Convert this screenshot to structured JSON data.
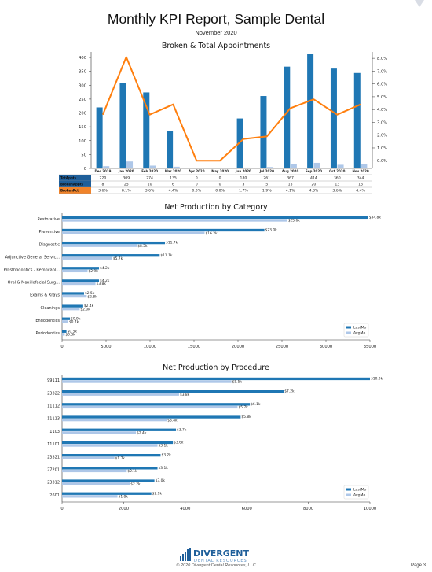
{
  "report": {
    "title": "Monthly KPI Report, Sample Dental",
    "subtitle": "November 2020"
  },
  "footer": {
    "logo_main": "DIVERGENT",
    "logo_sub": "DENTAL RESOURCES",
    "copyright": "© 2020 Divergent Dental Resources, LLC",
    "page": "Page 3"
  },
  "colors": {
    "dark_blue": "#1f77b4",
    "light_blue": "#aec7e8",
    "orange": "#ff7f0e",
    "table_header": "#1f5f9a",
    "table_orange": "#f0832a"
  },
  "chart_data": [
    {
      "type": "bar",
      "title": "Broken & Total Appointments",
      "categories": [
        "Dec 2019",
        "Jan 2020",
        "Feb 2020",
        "Mar 2020",
        "Apr 2020",
        "May 2020",
        "Jun 2020",
        "Jul 2020",
        "Aug 2020",
        "Sep 2020",
        "Oct 2020",
        "Nov 2020"
      ],
      "series": [
        {
          "name": "TotAppts",
          "kind": "bar",
          "axis": "left",
          "color": "#1f77b4",
          "values": [
            220,
            309,
            274,
            135,
            0,
            0,
            180,
            261,
            367,
            414,
            360,
            344
          ]
        },
        {
          "name": "BrokenAppts",
          "kind": "bar",
          "axis": "left",
          "color": "#aec7e8",
          "values": [
            8,
            25,
            10,
            6,
            0,
            0,
            3,
            5,
            15,
            20,
            13,
            15
          ]
        },
        {
          "name": "BrokenPct",
          "kind": "line",
          "axis": "right",
          "color": "#ff7f0e",
          "values": [
            3.6,
            8.1,
            3.6,
            4.4,
            0.0,
            0.0,
            1.7,
            1.9,
            4.1,
            4.8,
            3.6,
            4.4
          ]
        }
      ],
      "table_rows": [
        {
          "label": "TotAppts",
          "cells": [
            "220",
            "309",
            "274",
            "135",
            "0",
            "0",
            "180",
            "261",
            "367",
            "414",
            "360",
            "344"
          ]
        },
        {
          "label": "BrokenAppts",
          "cells": [
            "8",
            "25",
            "10",
            "6",
            "0",
            "0",
            "3",
            "5",
            "15",
            "20",
            "13",
            "15"
          ]
        },
        {
          "label": "BrokenPct",
          "cells": [
            "3.6%",
            "8.1%",
            "3.6%",
            "4.4%",
            "0.0%",
            "0.0%",
            "1.7%",
            "1.9%",
            "4.1%",
            "4.8%",
            "3.6%",
            "4.4%"
          ]
        }
      ],
      "ylim": [
        0,
        420
      ],
      "yticks": [
        0,
        50,
        100,
        150,
        200,
        250,
        300,
        350,
        400
      ],
      "y2lim": [
        -0.6,
        8.5
      ],
      "y2ticks": [
        "0.0%",
        "1.0%",
        "2.0%",
        "3.0%",
        "4.0%",
        "5.0%",
        "6.0%",
        "7.0%",
        "8.0%"
      ],
      "grid": false
    },
    {
      "type": "bar",
      "orientation": "horizontal",
      "title": "Net Production by Category",
      "categories": [
        "Restorative",
        "Preventive",
        "Diagnostic",
        "Adjunctive General Servic...",
        "Prosthodontics - Removabl...",
        "Oral & Maxillofacial Surg...",
        "Exams & Xrays",
        "Cleanings",
        "Endodontics",
        "Periodontics"
      ],
      "series": [
        {
          "name": "LastMo",
          "color": "#1f77b4",
          "values": [
            34800,
            23000,
            11700,
            11100,
            4200,
            4200,
            2500,
            2400,
            900,
            500
          ],
          "labels": [
            "$34.8k",
            "$23.0k",
            "$11.7k",
            "$11.1k",
            "$4.2k",
            "$4.2k",
            "$2.5k",
            "$2.4k",
            "$0.9k",
            "$0.5k"
          ]
        },
        {
          "name": "AvgMo",
          "color": "#aec7e8",
          "values": [
            25600,
            16200,
            8500,
            5700,
            2900,
            3800,
            2800,
            2000,
            700,
            300
          ],
          "labels": [
            "$25.6k",
            "$16.2k",
            "$8.5k",
            "$5.7k",
            "$2.9k",
            "$3.8k",
            "$2.8k",
            "$2.0k",
            "$0.7k",
            "$0.3k"
          ]
        }
      ],
      "xlim": [
        0,
        35000
      ],
      "xticks": [
        0,
        5000,
        10000,
        15000,
        20000,
        25000,
        30000,
        35000
      ],
      "legend": "bottom-right",
      "grid": false
    },
    {
      "type": "bar",
      "orientation": "horizontal",
      "title": "Net Production by Procedure",
      "categories": [
        "99111",
        "23322",
        "11112",
        "11113",
        "1103",
        "11101",
        "23321",
        "27201",
        "23312",
        "2601"
      ],
      "series": [
        {
          "name": "LastMo",
          "color": "#1f77b4",
          "values": [
            10000,
            7200,
            6100,
            5800,
            3700,
            3600,
            3200,
            3100,
            3000,
            2900
          ],
          "labels": [
            "$10.0k",
            "$7.2k",
            "$6.1k",
            "$5.8k",
            "$3.7k",
            "$3.6k",
            "$3.2k",
            "$3.1k",
            "$3.0k",
            "$2.9k"
          ]
        },
        {
          "name": "AvgMo",
          "color": "#aec7e8",
          "values": [
            5500,
            3800,
            5700,
            3400,
            2400,
            3100,
            1700,
            2100,
            2200,
            1800
          ],
          "labels": [
            "$5.5k",
            "$3.8k",
            "$5.7k",
            "$3.4k",
            "$2.4k",
            "$3.1k",
            "$1.7k",
            "$2.1k",
            "$2.2k",
            "$1.8k"
          ]
        }
      ],
      "xlim": [
        0,
        10000
      ],
      "xticks": [
        0,
        2000,
        4000,
        6000,
        8000,
        10000
      ],
      "legend": "bottom-right",
      "grid": false
    }
  ]
}
